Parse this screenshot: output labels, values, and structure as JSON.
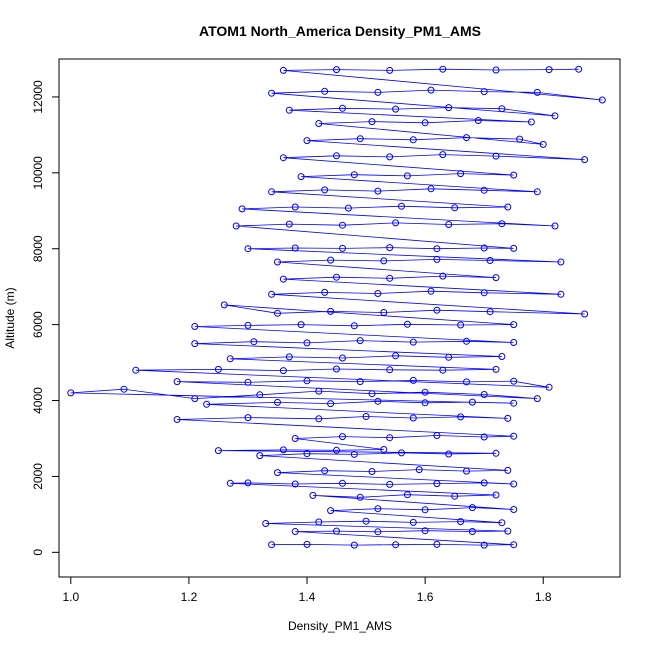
{
  "chart_data": {
    "type": "scatter",
    "title": "ATOM1 North_America Density_PM1_AMS",
    "xlabel": "Density_PM1_AMS",
    "ylabel": "Altitude (m)",
    "xlim": [
      0.98,
      1.93
    ],
    "ylim": [
      -650,
      13000
    ],
    "x_ticks": [
      1.0,
      1.2,
      1.4,
      1.6,
      1.8
    ],
    "x_tick_labels": [
      "1.0",
      "1.2",
      "1.4",
      "1.6",
      "1.8"
    ],
    "y_ticks": [
      0,
      2000,
      4000,
      6000,
      8000,
      10000,
      12000
    ],
    "y_tick_labels": [
      "0",
      "2000",
      "4000",
      "6000",
      "8000",
      "10000",
      "12000"
    ],
    "series_color": "#0000ff",
    "markers": "open-circles-connected-by-lines",
    "grid": false,
    "points": [
      [
        1.34,
        200
      ],
      [
        1.4,
        210
      ],
      [
        1.48,
        190
      ],
      [
        1.55,
        200
      ],
      [
        1.62,
        210
      ],
      [
        1.7,
        190
      ],
      [
        1.75,
        200
      ],
      [
        1.38,
        550
      ],
      [
        1.45,
        560
      ],
      [
        1.52,
        540
      ],
      [
        1.6,
        570
      ],
      [
        1.68,
        550
      ],
      [
        1.74,
        560
      ],
      [
        1.33,
        760
      ],
      [
        1.42,
        800
      ],
      [
        1.5,
        820
      ],
      [
        1.58,
        790
      ],
      [
        1.66,
        810
      ],
      [
        1.73,
        780
      ],
      [
        1.44,
        1100
      ],
      [
        1.52,
        1150
      ],
      [
        1.6,
        1120
      ],
      [
        1.68,
        1180
      ],
      [
        1.75,
        1130
      ],
      [
        1.41,
        1500
      ],
      [
        1.49,
        1450
      ],
      [
        1.57,
        1520
      ],
      [
        1.65,
        1480
      ],
      [
        1.72,
        1510
      ],
      [
        1.27,
        1820
      ],
      [
        1.3,
        1830
      ],
      [
        1.38,
        1800
      ],
      [
        1.46,
        1820
      ],
      [
        1.54,
        1790
      ],
      [
        1.62,
        1810
      ],
      [
        1.7,
        1830
      ],
      [
        1.75,
        1800
      ],
      [
        1.35,
        2100
      ],
      [
        1.43,
        2150
      ],
      [
        1.51,
        2130
      ],
      [
        1.59,
        2180
      ],
      [
        1.67,
        2140
      ],
      [
        1.74,
        2160
      ],
      [
        1.32,
        2550
      ],
      [
        1.4,
        2600
      ],
      [
        1.48,
        2580
      ],
      [
        1.56,
        2620
      ],
      [
        1.64,
        2590
      ],
      [
        1.72,
        2610
      ],
      [
        1.25,
        2680
      ],
      [
        1.36,
        2700
      ],
      [
        1.45,
        2690
      ],
      [
        1.53,
        2710
      ],
      [
        1.38,
        3000
      ],
      [
        1.46,
        3050
      ],
      [
        1.54,
        3020
      ],
      [
        1.62,
        3080
      ],
      [
        1.7,
        3040
      ],
      [
        1.75,
        3060
      ],
      [
        1.18,
        3500
      ],
      [
        1.3,
        3550
      ],
      [
        1.42,
        3520
      ],
      [
        1.5,
        3580
      ],
      [
        1.58,
        3540
      ],
      [
        1.66,
        3570
      ],
      [
        1.74,
        3530
      ],
      [
        1.23,
        3900
      ],
      [
        1.35,
        3950
      ],
      [
        1.44,
        3920
      ],
      [
        1.52,
        3980
      ],
      [
        1.6,
        3940
      ],
      [
        1.68,
        3960
      ],
      [
        1.75,
        3930
      ],
      [
        1.0,
        4200
      ],
      [
        1.09,
        4300
      ],
      [
        1.21,
        4050
      ],
      [
        1.32,
        4150
      ],
      [
        1.42,
        4250
      ],
      [
        1.51,
        4180
      ],
      [
        1.6,
        4220
      ],
      [
        1.7,
        4160
      ],
      [
        1.79,
        4050
      ],
      [
        1.18,
        4500
      ],
      [
        1.3,
        4480
      ],
      [
        1.4,
        4520
      ],
      [
        1.49,
        4500
      ],
      [
        1.58,
        4530
      ],
      [
        1.67,
        4490
      ],
      [
        1.75,
        4510
      ],
      [
        1.81,
        4350
      ],
      [
        1.11,
        4800
      ],
      [
        1.25,
        4820
      ],
      [
        1.36,
        4790
      ],
      [
        1.45,
        4830
      ],
      [
        1.54,
        4810
      ],
      [
        1.63,
        4800
      ],
      [
        1.72,
        4820
      ],
      [
        1.27,
        5100
      ],
      [
        1.37,
        5150
      ],
      [
        1.46,
        5120
      ],
      [
        1.55,
        5180
      ],
      [
        1.64,
        5140
      ],
      [
        1.73,
        5160
      ],
      [
        1.21,
        5500
      ],
      [
        1.31,
        5550
      ],
      [
        1.4,
        5520
      ],
      [
        1.49,
        5580
      ],
      [
        1.58,
        5540
      ],
      [
        1.67,
        5560
      ],
      [
        1.75,
        5530
      ],
      [
        1.21,
        5950
      ],
      [
        1.3,
        5980
      ],
      [
        1.39,
        6000
      ],
      [
        1.48,
        5970
      ],
      [
        1.57,
        6010
      ],
      [
        1.66,
        5990
      ],
      [
        1.75,
        6000
      ],
      [
        1.26,
        6520
      ],
      [
        1.35,
        6300
      ],
      [
        1.44,
        6350
      ],
      [
        1.53,
        6320
      ],
      [
        1.62,
        6380
      ],
      [
        1.71,
        6340
      ],
      [
        1.87,
        6280
      ],
      [
        1.34,
        6800
      ],
      [
        1.43,
        6850
      ],
      [
        1.52,
        6820
      ],
      [
        1.61,
        6880
      ],
      [
        1.7,
        6840
      ],
      [
        1.83,
        6800
      ],
      [
        1.36,
        7200
      ],
      [
        1.45,
        7250
      ],
      [
        1.54,
        7220
      ],
      [
        1.63,
        7280
      ],
      [
        1.72,
        7240
      ],
      [
        1.35,
        7650
      ],
      [
        1.44,
        7700
      ],
      [
        1.53,
        7680
      ],
      [
        1.62,
        7720
      ],
      [
        1.71,
        7690
      ],
      [
        1.83,
        7650
      ],
      [
        1.3,
        8000
      ],
      [
        1.38,
        8020
      ],
      [
        1.46,
        8010
      ],
      [
        1.54,
        8030
      ],
      [
        1.62,
        8000
      ],
      [
        1.7,
        8020
      ],
      [
        1.75,
        8010
      ],
      [
        1.28,
        8600
      ],
      [
        1.37,
        8650
      ],
      [
        1.46,
        8620
      ],
      [
        1.55,
        8680
      ],
      [
        1.64,
        8640
      ],
      [
        1.73,
        8660
      ],
      [
        1.82,
        8600
      ],
      [
        1.29,
        9050
      ],
      [
        1.38,
        9100
      ],
      [
        1.47,
        9070
      ],
      [
        1.56,
        9120
      ],
      [
        1.65,
        9080
      ],
      [
        1.74,
        9100
      ],
      [
        1.34,
        9500
      ],
      [
        1.43,
        9550
      ],
      [
        1.52,
        9520
      ],
      [
        1.61,
        9580
      ],
      [
        1.7,
        9540
      ],
      [
        1.79,
        9500
      ],
      [
        1.39,
        9900
      ],
      [
        1.48,
        9950
      ],
      [
        1.57,
        9920
      ],
      [
        1.66,
        9980
      ],
      [
        1.75,
        9940
      ],
      [
        1.36,
        10400
      ],
      [
        1.45,
        10450
      ],
      [
        1.54,
        10420
      ],
      [
        1.63,
        10480
      ],
      [
        1.72,
        10440
      ],
      [
        1.87,
        10350
      ],
      [
        1.4,
        10850
      ],
      [
        1.49,
        10900
      ],
      [
        1.58,
        10870
      ],
      [
        1.67,
        10930
      ],
      [
        1.76,
        10890
      ],
      [
        1.8,
        10750
      ],
      [
        1.42,
        11300
      ],
      [
        1.51,
        11350
      ],
      [
        1.6,
        11320
      ],
      [
        1.69,
        11380
      ],
      [
        1.78,
        11340
      ],
      [
        1.37,
        11650
      ],
      [
        1.46,
        11700
      ],
      [
        1.55,
        11680
      ],
      [
        1.64,
        11720
      ],
      [
        1.73,
        11690
      ],
      [
        1.82,
        11500
      ],
      [
        1.34,
        12100
      ],
      [
        1.43,
        12150
      ],
      [
        1.52,
        12120
      ],
      [
        1.61,
        12180
      ],
      [
        1.7,
        12140
      ],
      [
        1.79,
        12120
      ],
      [
        1.9,
        11920
      ],
      [
        1.36,
        12700
      ],
      [
        1.45,
        12720
      ],
      [
        1.54,
        12700
      ],
      [
        1.63,
        12730
      ],
      [
        1.72,
        12710
      ],
      [
        1.81,
        12720
      ],
      [
        1.86,
        12730
      ]
    ]
  }
}
